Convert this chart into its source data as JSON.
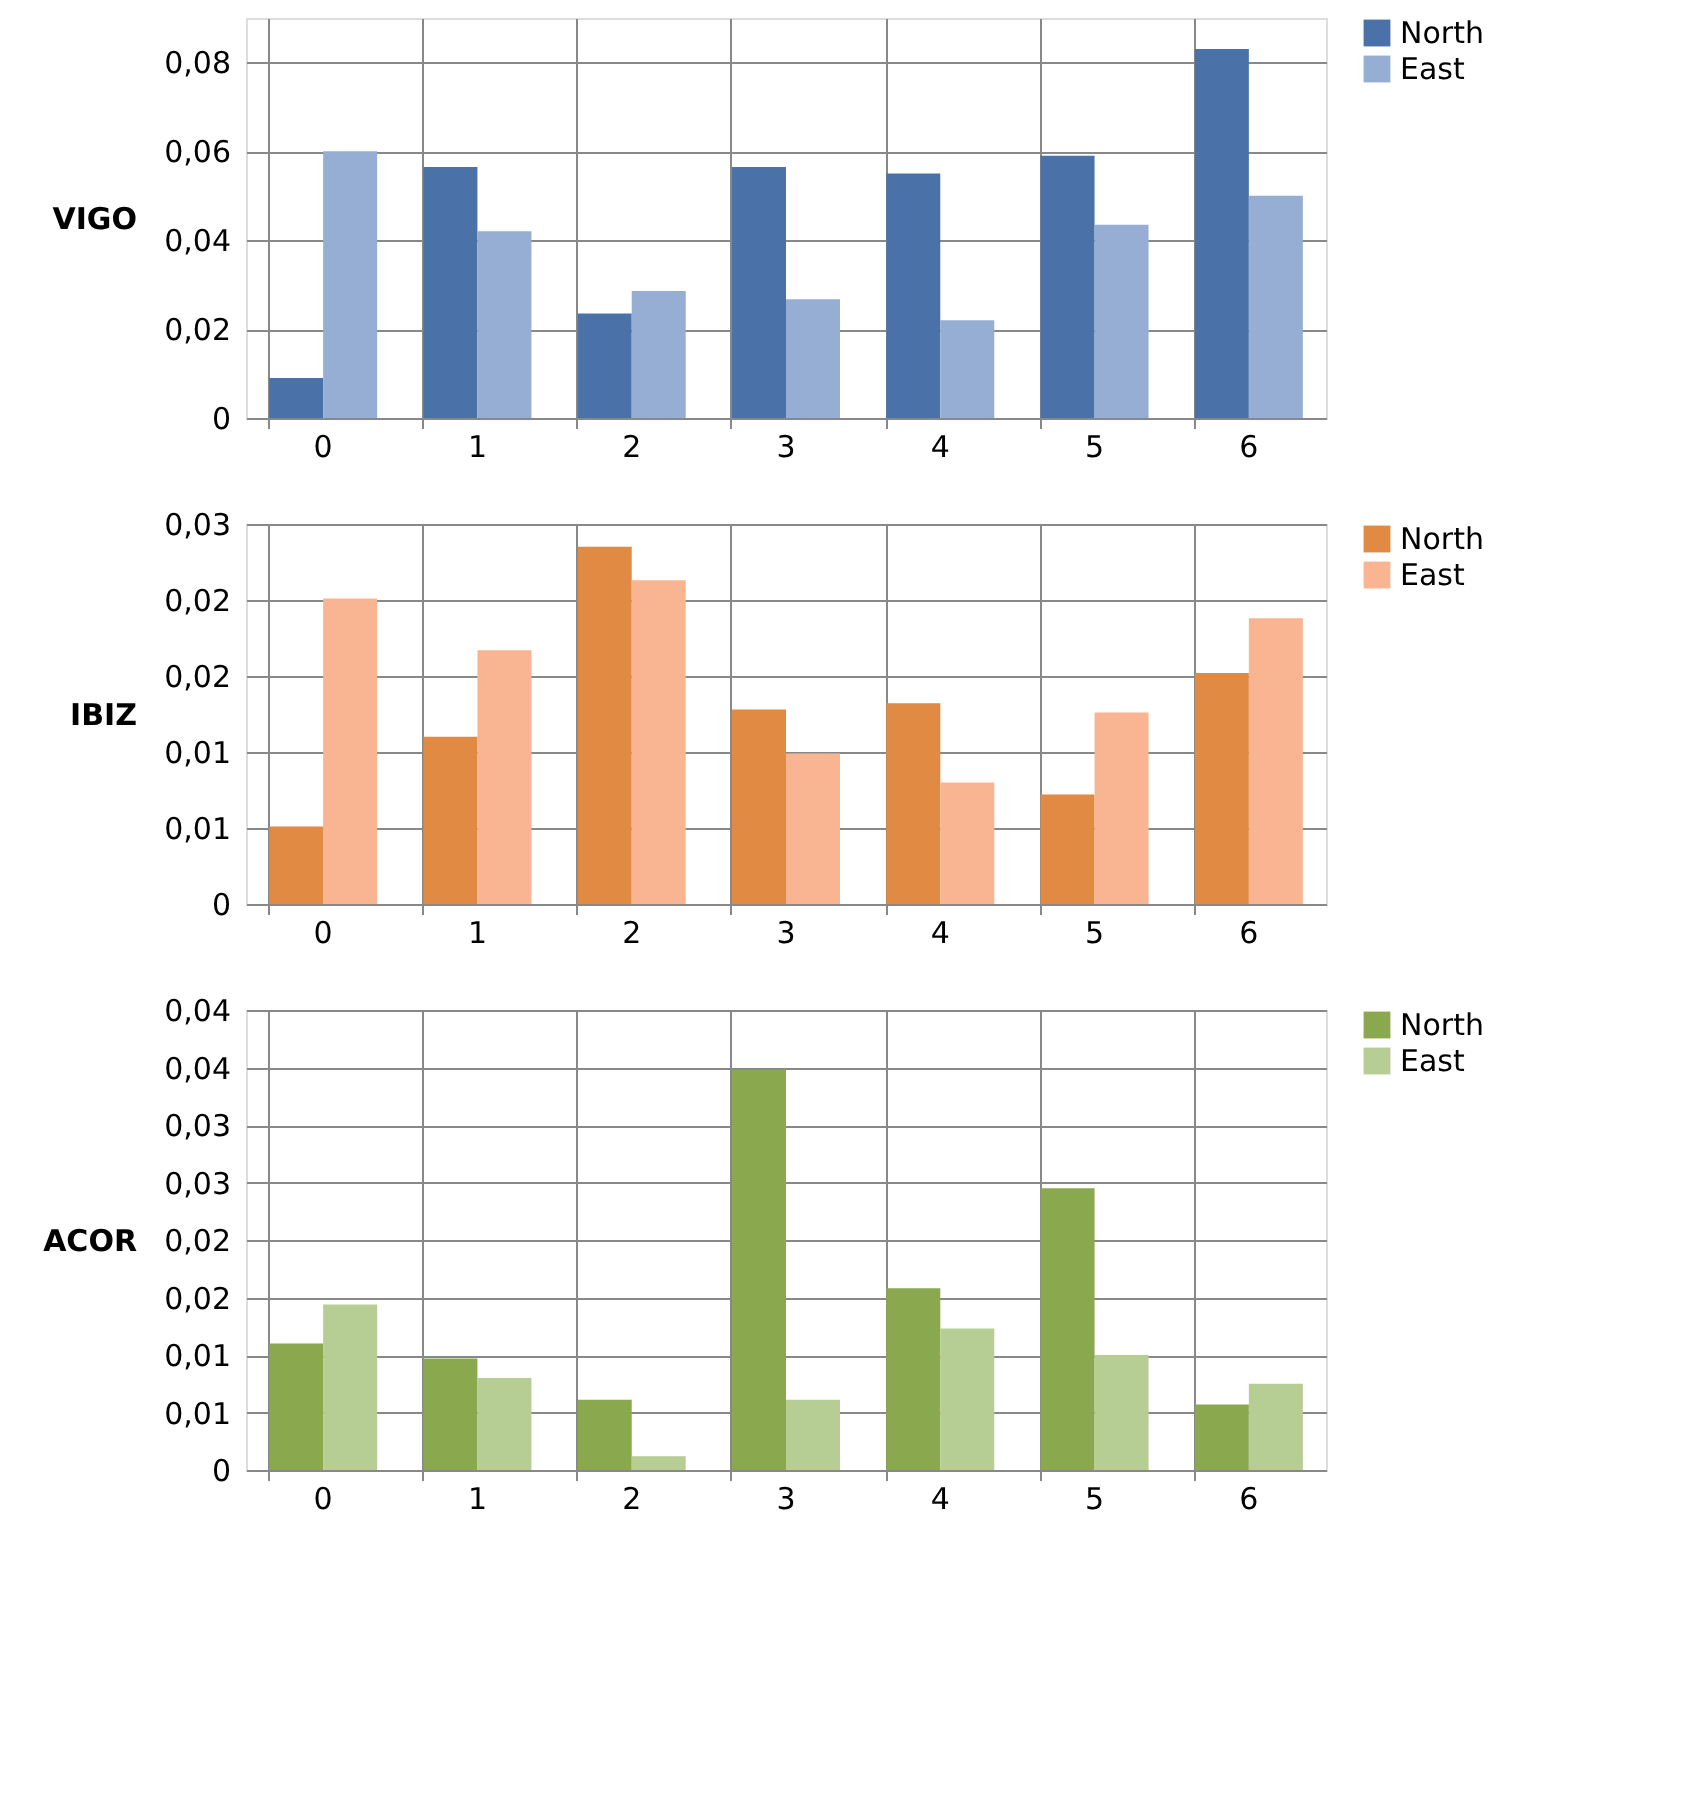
{
  "chart_data": [
    {
      "type": "bar",
      "ylabel": "VIGO",
      "categories": [
        "0",
        "1",
        "2",
        "3",
        "4",
        "5",
        "6"
      ],
      "ylim": [
        0,
        0.09
      ],
      "yticks": [
        0,
        {
          "value": 0.02,
          "label": "0,02"
        },
        {
          "value": 0.04,
          "label": "0,04"
        },
        {
          "value": 0.06,
          "label": "0,06"
        },
        {
          "value": 0.08,
          "label": "0,08"
        }
      ],
      "grid": true,
      "legend": "right",
      "series": [
        {
          "name": "North",
          "color": "#4a72a8",
          "values": [
            0.009,
            0.0565,
            0.0235,
            0.0565,
            0.055,
            0.059,
            0.083
          ]
        },
        {
          "name": "East",
          "color": "#97aed4",
          "values": [
            0.06,
            0.042,
            0.0286,
            0.0267,
            0.022,
            0.0435,
            0.05
          ]
        }
      ]
    },
    {
      "type": "bar",
      "ylabel": "IBIZ",
      "categories": [
        "0",
        "1",
        "2",
        "3",
        "4",
        "5",
        "6"
      ],
      "ylim": [
        0,
        0.025
      ],
      "yticks": [
        0,
        {
          "value": 0.005,
          "label": "0,01"
        },
        {
          "value": 0.01,
          "label": "0,01"
        },
        {
          "value": 0.015,
          "label": "0,02"
        },
        {
          "value": 0.02,
          "label": "0,02"
        },
        {
          "value": 0.025,
          "label": "0,03"
        }
      ],
      "grid": true,
      "legend": "right",
      "series": [
        {
          "name": "North",
          "color": "#e08a43",
          "values": [
            0.0051,
            0.011,
            0.0235,
            0.0128,
            0.0132,
            0.0072,
            0.0152
          ]
        },
        {
          "name": "East",
          "color": "#f9b491",
          "values": [
            0.0201,
            0.0167,
            0.0213,
            0.0099,
            0.008,
            0.0126,
            0.0188
          ]
        }
      ]
    },
    {
      "type": "bar",
      "ylabel": "ACOR",
      "categories": [
        "0",
        "1",
        "2",
        "3",
        "4",
        "5",
        "6"
      ],
      "ylim": [
        0,
        0.04
      ],
      "yticks": [
        0,
        {
          "value": 0.005,
          "label": "0,01"
        },
        {
          "value": 0.01,
          "label": "0,01"
        },
        {
          "value": 0.015,
          "label": "0,02"
        },
        {
          "value": 0.02,
          "label": "0,02"
        },
        {
          "value": 0.025,
          "label": "0,03"
        },
        {
          "value": 0.03,
          "label": "0,03"
        },
        {
          "value": 0.035,
          "label": "0,04"
        },
        {
          "value": 0.04,
          "label": "0,04"
        }
      ],
      "grid": true,
      "legend": "right",
      "series": [
        {
          "name": "North",
          "color": "#8aa84e",
          "values": [
            0.011,
            0.0097,
            0.0061,
            0.0348,
            0.0158,
            0.0245,
            0.0057
          ]
        },
        {
          "name": "East",
          "color": "#b6cd94",
          "values": [
            0.0144,
            0.008,
            0.0012,
            0.0061,
            0.0123,
            0.01,
            0.0075
          ]
        }
      ]
    }
  ]
}
